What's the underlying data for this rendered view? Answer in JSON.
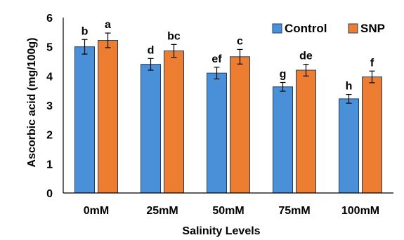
{
  "chart_data": {
    "type": "bar",
    "title": "",
    "xlabel": "Salinity Levels",
    "ylabel": "Ascorbic acid (mg/100g)",
    "ylim": [
      0,
      6
    ],
    "yticks": [
      "0",
      "1",
      "2",
      "3",
      "4",
      "5",
      "6"
    ],
    "grid": false,
    "legend_position": "top-right",
    "categories": [
      "0mM",
      "25mM",
      "50mM",
      "75mM",
      "100mM"
    ],
    "series": [
      {
        "name": "Control",
        "color": "#4a90d9",
        "values": [
          5.0,
          4.4,
          4.1,
          3.63,
          3.22
        ],
        "errors": [
          0.25,
          0.2,
          0.2,
          0.15,
          0.15
        ],
        "letters": [
          "b",
          "d",
          "ef",
          "g",
          "h"
        ]
      },
      {
        "name": "SNP",
        "color": "#ed7d31",
        "values": [
          5.22,
          4.86,
          4.66,
          4.2,
          3.97
        ],
        "errors": [
          0.25,
          0.22,
          0.25,
          0.2,
          0.2
        ],
        "letters": [
          "a",
          "bc",
          "c",
          "de",
          "f"
        ]
      }
    ]
  }
}
